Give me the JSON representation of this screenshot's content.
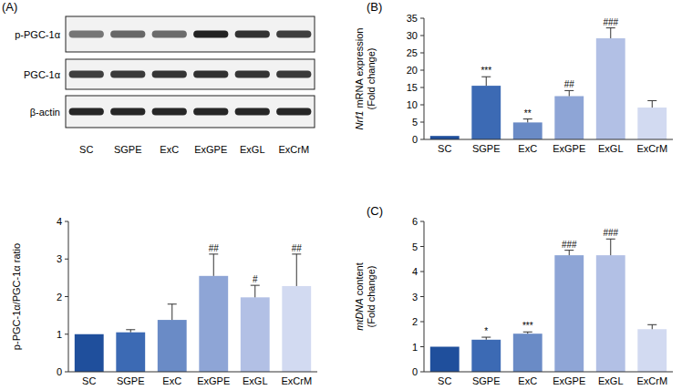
{
  "blot": {
    "label": "(A)",
    "rows": [
      "p-PGC-1α",
      "PGC-1α",
      "β-actin"
    ],
    "lanes": [
      "SC",
      "SGPE",
      "ExC",
      "ExGPE",
      "ExGL",
      "ExCrM"
    ]
  },
  "chart_data": [
    {
      "type": "bar",
      "ylabel": [
        "p-PGC-1α/PGC-1α ratio"
      ],
      "categories": [
        "SC",
        "SGPE",
        "ExC",
        "ExGPE",
        "ExGL",
        "ExCrM"
      ],
      "values": [
        1,
        1.05,
        1.38,
        2.55,
        1.98,
        2.28
      ],
      "errors": [
        0,
        0.07,
        0.42,
        0.58,
        0.32,
        0.85
      ],
      "annotations": [
        null,
        null,
        null,
        "##",
        "#",
        "##"
      ],
      "colors": [
        "#1f4f9c",
        "#3c6ab4",
        "#6a8bc6",
        "#8ea5d6",
        "#b2c0e5",
        "#d2daf1"
      ],
      "ylim": [
        0,
        4
      ],
      "yticks": [
        0,
        1,
        2,
        3,
        4
      ],
      "grid": false
    },
    {
      "type": "bar",
      "title": "(B)",
      "ylabel": [
        "Nrf1 mRNA expression",
        "(Fold change)"
      ],
      "categories": [
        "SC",
        "SGPE",
        "ExC",
        "ExGPE",
        "ExGL",
        "ExCrM"
      ],
      "values": [
        1,
        15.5,
        4.9,
        12.5,
        29.2,
        9.2
      ],
      "errors": [
        0,
        2.6,
        1.0,
        1.6,
        3.0,
        2.0
      ],
      "annotations": [
        null,
        "***",
        "**",
        "##",
        "###",
        null
      ],
      "colors": [
        "#1f4f9c",
        "#3c6ab4",
        "#6a8bc6",
        "#8ea5d6",
        "#b2c0e5",
        "#d2daf1"
      ],
      "ylim": [
        0,
        35
      ],
      "yticks": [
        0,
        5,
        10,
        15,
        20,
        25,
        30,
        35
      ],
      "grid": false
    },
    {
      "type": "bar",
      "title": "(C)",
      "ylabel": [
        "mtDNA content",
        "(Fold change)"
      ],
      "categories": [
        "SC",
        "SGPE",
        "ExC",
        "ExGPE",
        "ExGL",
        "ExCrM"
      ],
      "values": [
        1,
        1.28,
        1.52,
        4.65,
        4.65,
        1.7
      ],
      "errors": [
        0,
        0.1,
        0.07,
        0.2,
        0.65,
        0.18
      ],
      "annotations": [
        null,
        "*",
        "***",
        "###",
        "###",
        null
      ],
      "colors": [
        "#1f4f9c",
        "#3c6ab4",
        "#6a8bc6",
        "#8ea5d6",
        "#b2c0e5",
        "#d2daf1"
      ],
      "ylim": [
        0,
        6
      ],
      "yticks": [
        0,
        1,
        2,
        3,
        4,
        5,
        6
      ],
      "grid": false
    }
  ]
}
